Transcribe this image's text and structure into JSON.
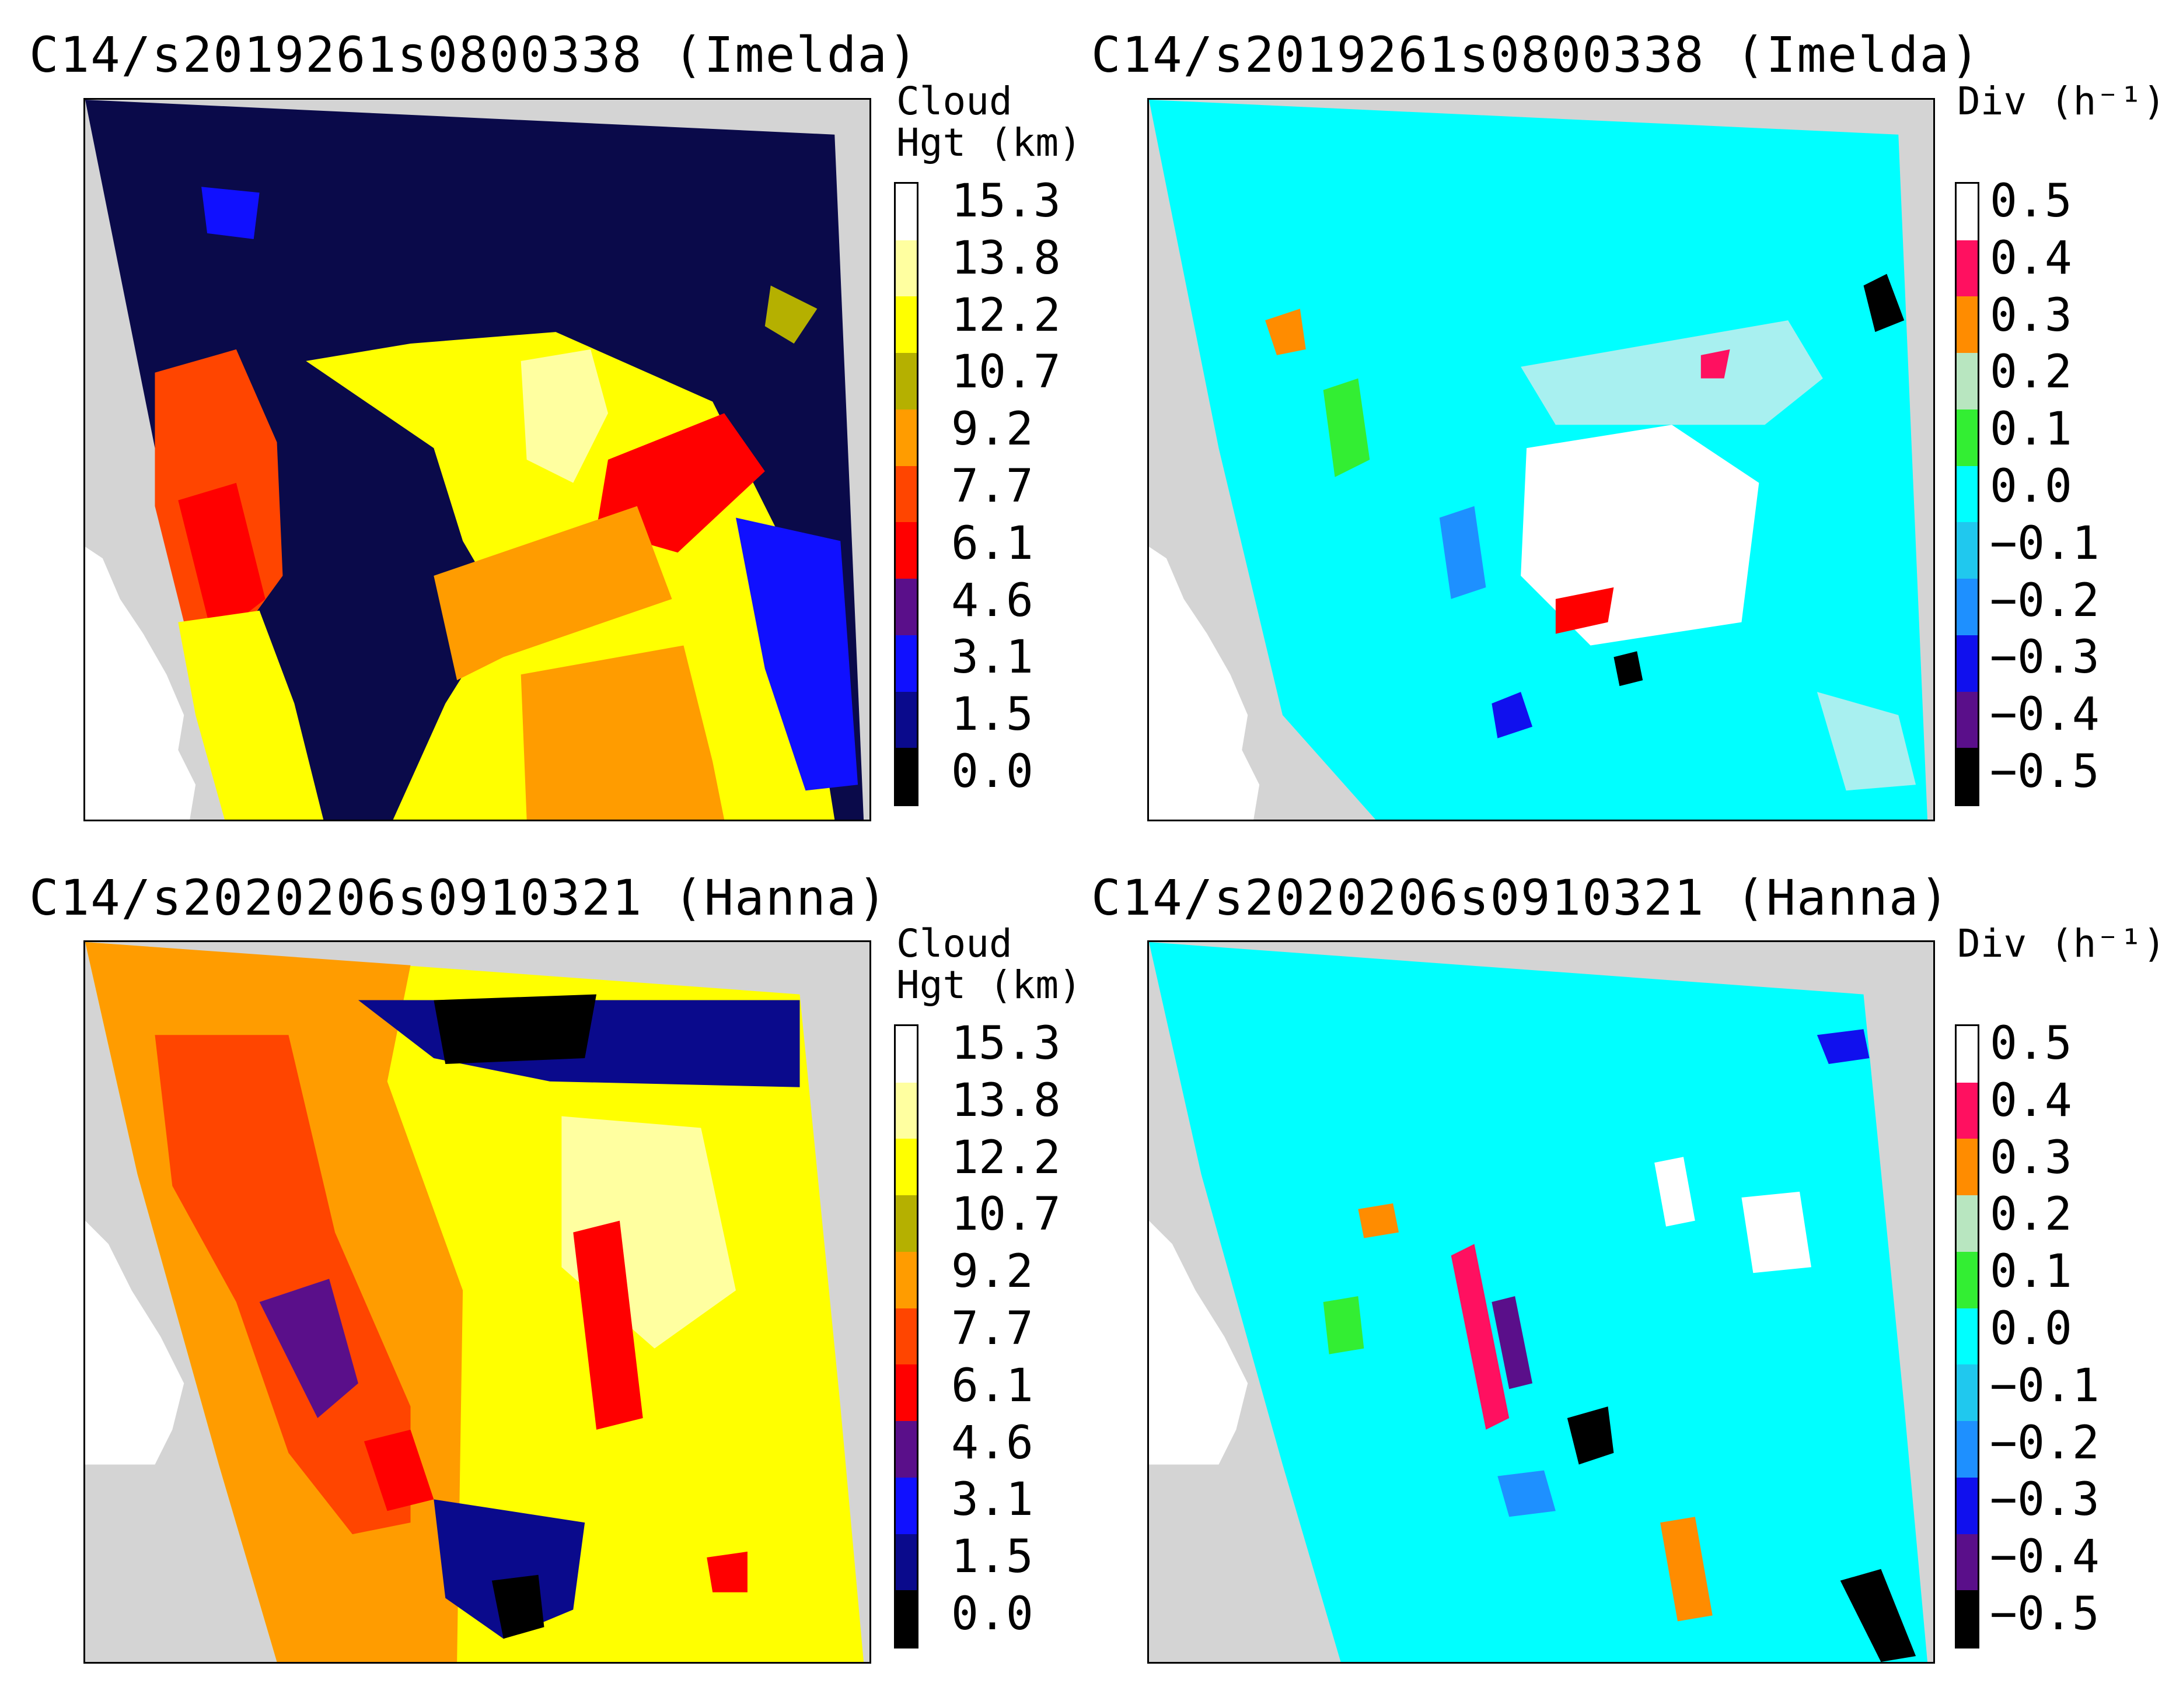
{
  "panels": {
    "top_left": {
      "title": "C14/s2019261s0800338 (Imelda)",
      "colorbar": "cloud"
    },
    "top_right": {
      "title": "C14/s2019261s0800338 (Imelda)",
      "colorbar": "div"
    },
    "bottom_left": {
      "title": "C14/s2020206s0910321 (Hanna)",
      "colorbar": "cloud"
    },
    "bottom_right": {
      "title": "C14/s2020206s0910321 (Hanna)",
      "colorbar": "div"
    }
  },
  "colorbars": {
    "cloud": {
      "label": "Cloud\nHgt (km)",
      "ticks": [
        "15.3",
        "13.8",
        "12.2",
        "10.7",
        "9.2",
        "7.7",
        "6.1",
        "4.6",
        "3.1",
        "1.5",
        "0.0"
      ],
      "colors_top_to_bottom": [
        "#ffffff",
        "#ffffa0",
        "#ffff00",
        "#b5b000",
        "#ff9c00",
        "#ff4500",
        "#ff0000",
        "#5a0f8a",
        "#1010ff",
        "#0a0a8c",
        "#000000"
      ]
    },
    "div": {
      "label": "Div (h⁻¹)",
      "ticks": [
        "0.5",
        "0.4",
        "0.3",
        "0.2",
        "0.1",
        "0.0",
        "−0.1",
        "−0.2",
        "−0.3",
        "−0.4",
        "−0.5"
      ],
      "colors_top_to_bottom": [
        "#ffffff",
        "#ff1060",
        "#ff8c00",
        "#b8e6c0",
        "#33ee33",
        "#00ffff",
        "#20c8ee",
        "#1e90ff",
        "#1010ee",
        "#5a0f8a",
        "#000000"
      ]
    }
  },
  "map_colors": {
    "land": "#d4d4d4",
    "water": "#ffffff"
  }
}
